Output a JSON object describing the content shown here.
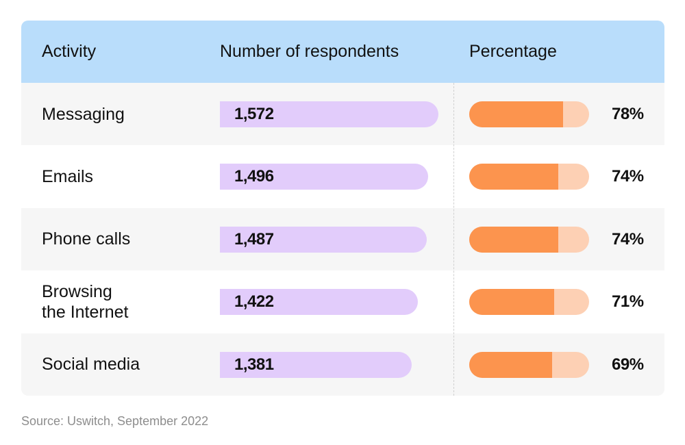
{
  "chart_data": {
    "type": "table",
    "columns": [
      "Activity",
      "Number of respondents",
      "Percentage"
    ],
    "rows": [
      {
        "activity": "Messaging",
        "respondents": 1572,
        "respondents_label": "1,572",
        "percentage": 78,
        "percentage_label": "78%"
      },
      {
        "activity": "Emails",
        "respondents": 1496,
        "respondents_label": "1,496",
        "percentage": 74,
        "percentage_label": "74%"
      },
      {
        "activity": "Phone calls",
        "respondents": 1487,
        "respondents_label": "1,487",
        "percentage": 74,
        "percentage_label": "74%"
      },
      {
        "activity": "Browsing\nthe Internet",
        "respondents": 1422,
        "respondents_label": "1,422",
        "percentage": 71,
        "percentage_label": "71%"
      },
      {
        "activity": "Social media",
        "respondents": 1381,
        "respondents_label": "1,381",
        "percentage": 69,
        "percentage_label": "69%"
      }
    ],
    "source": "Source: Uswitch, September 2022"
  },
  "colors": {
    "header_bg": "#b9ddfb",
    "respondents_bar": "#e2ccfb",
    "percentage_fill": "#fc944e",
    "percentage_track": "#fdd0b4",
    "row_alt_bg": "#f6f6f6"
  }
}
